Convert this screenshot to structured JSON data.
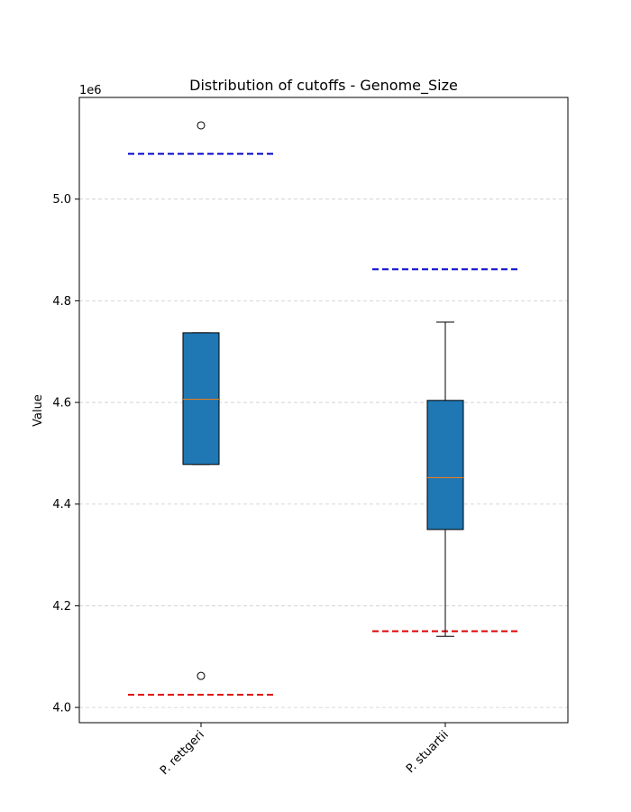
{
  "chart_data": {
    "type": "box",
    "title": "Distribution of cutoffs - Genome_Size",
    "xlabel": "",
    "ylabel": "Value",
    "offset_text": "1e6",
    "ylim": [
      3.97,
      5.2
    ],
    "yticks": [
      4.0,
      4.2,
      4.4,
      4.6,
      4.8,
      5.0
    ],
    "ytick_labels": [
      "4.0",
      "4.2",
      "4.4",
      "4.6",
      "4.8",
      "5.0"
    ],
    "grid": "y-dashed",
    "categories": [
      "P. rettgeri",
      "P. stuartii"
    ],
    "boxes": [
      {
        "label": "P. rettgeri",
        "q1": 4.478,
        "median": 4.606,
        "q3": 4.737,
        "whisker_low": 4.478,
        "whisker_high": 4.737,
        "outliers": [
          5.145,
          4.062
        ],
        "upper_cutoff": 5.089,
        "lower_cutoff": 4.025
      },
      {
        "label": "P. stuartii",
        "q1": 4.35,
        "median": 4.452,
        "q3": 4.604,
        "whisker_low": 4.14,
        "whisker_high": 4.758,
        "outliers": [],
        "upper_cutoff": 4.862,
        "lower_cutoff": 4.15
      }
    ],
    "colors": {
      "box_fill": "#1f77b4",
      "median": "#ff7f0e",
      "upper_cutoff": "#0000cd",
      "lower_cutoff": "#e00000",
      "grid": "#cccccc"
    }
  }
}
